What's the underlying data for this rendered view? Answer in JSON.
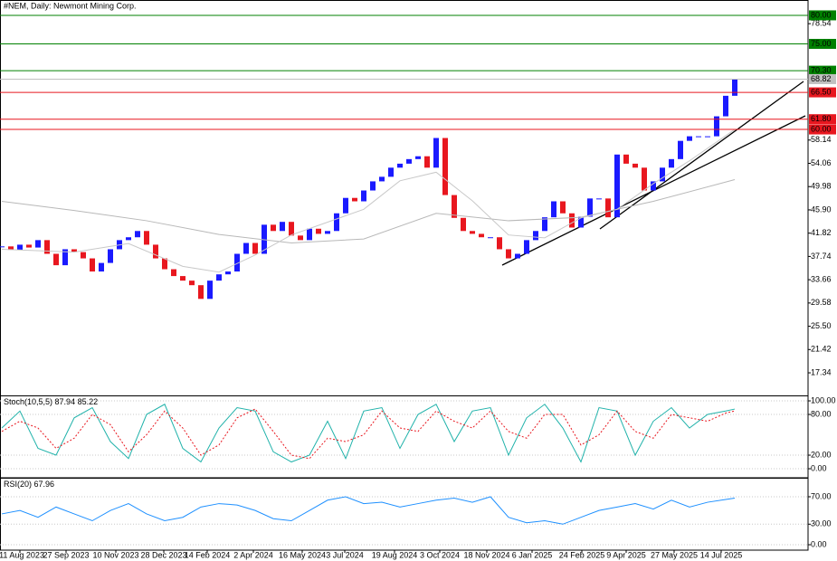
{
  "chart_data": [
    {
      "type": "candlestick",
      "title": "#NEM, Daily:  Newmont Mining Corp.",
      "x": [
        0,
        1,
        2,
        3,
        4,
        5,
        6,
        7,
        8,
        9,
        10,
        11,
        12,
        13,
        14,
        15,
        16,
        17,
        18,
        19,
        20,
        21,
        22,
        23,
        24,
        25,
        26,
        27,
        28,
        29,
        30,
        31,
        32,
        33,
        34,
        35,
        36,
        37,
        38,
        39,
        40,
        41,
        42,
        43,
        44,
        45,
        46,
        47,
        48,
        49,
        50,
        51,
        52,
        53,
        54,
        55,
        56,
        57,
        58,
        59,
        60,
        61,
        62,
        63,
        64,
        65,
        66,
        67,
        68,
        69,
        70,
        71,
        72,
        73,
        74,
        75,
        76,
        77,
        78,
        79,
        80,
        81
      ],
      "values": [
        39.5,
        38.9,
        39.8,
        39.3,
        40.6,
        38.2,
        36.2,
        39.0,
        38.5,
        37.4,
        35.1,
        36.6,
        39.0,
        40.6,
        41.1,
        42.2,
        39.8,
        37.4,
        35.5,
        34.3,
        33.5,
        32.7,
        30.3,
        33.5,
        34.6,
        35.1,
        38.2,
        40.1,
        38.2,
        43.3,
        42.2,
        43.8,
        41.4,
        40.6,
        42.6,
        41.7,
        42.2,
        45.3,
        48.0,
        47.4,
        49.3,
        50.9,
        51.7,
        53.3,
        54.0,
        54.8,
        55.3,
        53.3,
        58.5,
        48.5,
        44.5,
        42.2,
        41.7,
        41.1,
        41.1,
        39.0,
        37.4,
        38.2,
        40.6,
        42.2,
        44.6,
        47.4,
        45.3,
        42.8,
        44.7,
        47.9,
        47.9,
        44.6,
        55.6,
        54.0,
        53.3,
        49.3,
        50.9,
        53.3,
        54.8,
        58.0,
        58.8,
        58.8,
        58.8,
        62.3,
        65.9,
        68.82
      ],
      "up_color": "#1a1aff",
      "down_color": "#e8171f",
      "overlays": [
        {
          "color": "#b8b8b8",
          "x": [
            0,
            8,
            16,
            24,
            32,
            40,
            48,
            56,
            64,
            72,
            81
          ],
          "values": [
            47.4,
            45.8,
            44.0,
            41.6,
            40.1,
            40.8,
            45.3,
            44.0,
            44.6,
            47.4,
            51.2
          ]
        },
        {
          "color": "#c8c8c8",
          "x": [
            0,
            8,
            14,
            20,
            24,
            28,
            32,
            40,
            44,
            48,
            52,
            56,
            60,
            64,
            68,
            72,
            76,
            81
          ],
          "values": [
            39.0,
            38.5,
            40.0,
            36.0,
            35.0,
            38.0,
            41.5,
            46.0,
            51.0,
            52.5,
            47.5,
            41.5,
            41.0,
            44.5,
            46.0,
            50.5,
            54.5,
            60.0
          ]
        }
      ],
      "levels": [
        {
          "value": 80,
          "label": "80.00",
          "color": "#008000"
        },
        {
          "value": 75,
          "label": "75.00",
          "color": "#008000"
        },
        {
          "value": 70.3,
          "label": "70.30",
          "color": "#008000"
        },
        {
          "value": 66.5,
          "label": "66.50",
          "color": "#e8171f"
        },
        {
          "value": 61.8,
          "label": "61.80",
          "color": "#e8171f"
        },
        {
          "value": 60,
          "label": "60.00",
          "color": "#e8171f"
        }
      ],
      "current_price": 68.82,
      "xlim": [
        -0.2,
        89.1
      ],
      "ylim": [
        13.38,
        82.53
      ],
      "yticks": [
        {
          "value": 78.54,
          "label": "78.54"
        },
        {
          "value": 58.14,
          "label": "58.14"
        },
        {
          "value": 54.06,
          "label": "54.06"
        },
        {
          "value": 49.98,
          "label": "49.98"
        },
        {
          "value": 45.9,
          "label": "45.90"
        },
        {
          "value": 41.82,
          "label": "41.82"
        },
        {
          "value": 37.74,
          "label": "37.74"
        },
        {
          "value": 33.66,
          "label": "33.66"
        },
        {
          "value": 29.58,
          "label": "29.58"
        },
        {
          "value": 25.5,
          "label": "25.50"
        },
        {
          "value": 21.42,
          "label": "21.42"
        },
        {
          "value": 17.34,
          "label": "17.34"
        }
      ]
    },
    {
      "type": "line",
      "title": "Stoch(10,5,5)",
      "x": [
        0,
        2,
        4,
        6,
        8,
        10,
        12,
        14,
        16,
        18,
        20,
        22,
        24,
        26,
        28,
        30,
        32,
        34,
        36,
        38,
        40,
        42,
        44,
        46,
        48,
        50,
        52,
        54,
        56,
        58,
        60,
        62,
        64,
        66,
        68,
        70,
        72,
        74,
        76,
        78,
        80,
        81
      ],
      "series": [
        {
          "color": "#20b2aa",
          "dashed": false,
          "values": [
            60,
            85,
            30,
            20,
            75,
            90,
            40,
            15,
            80,
            95,
            30,
            10,
            60,
            90,
            85,
            25,
            10,
            20,
            70,
            15,
            85,
            90,
            30,
            80,
            95,
            40,
            85,
            90,
            20,
            75,
            95,
            60,
            10,
            90,
            85,
            20,
            70,
            90,
            60,
            80,
            85,
            87.94
          ]
        },
        {
          "color": "#e8171f",
          "dashed": true,
          "values": [
            55,
            70,
            60,
            30,
            45,
            80,
            65,
            25,
            50,
            85,
            60,
            20,
            35,
            75,
            88,
            55,
            20,
            15,
            45,
            40,
            50,
            85,
            60,
            55,
            85,
            70,
            60,
            85,
            55,
            45,
            80,
            80,
            35,
            50,
            85,
            55,
            45,
            80,
            75,
            70,
            82,
            85.22
          ]
        }
      ],
      "xlim": [
        -0.2,
        89.1
      ],
      "ylim": [
        -13.3,
        106.7
      ],
      "grid": true,
      "yticks": [
        {
          "value": 100,
          "label": "100.00"
        },
        {
          "value": 80,
          "label": "80.00"
        },
        {
          "value": 20,
          "label": "20.00"
        },
        {
          "value": 0,
          "label": "0.00"
        }
      ]
    },
    {
      "type": "line",
      "title": "RSI(20)",
      "x": [
        0,
        2,
        4,
        6,
        8,
        10,
        12,
        14,
        16,
        18,
        20,
        22,
        24,
        26,
        28,
        30,
        32,
        34,
        36,
        38,
        40,
        42,
        44,
        46,
        48,
        50,
        52,
        54,
        56,
        58,
        60,
        62,
        64,
        66,
        68,
        70,
        72,
        74,
        76,
        78,
        80,
        81
      ],
      "series": [
        {
          "color": "#1e90ff",
          "dashed": false,
          "values": [
            45,
            50,
            40,
            55,
            45,
            35,
            50,
            60,
            45,
            35,
            40,
            55,
            60,
            58,
            50,
            38,
            35,
            50,
            65,
            70,
            60,
            62,
            55,
            60,
            65,
            68,
            62,
            70,
            40,
            32,
            35,
            30,
            40,
            50,
            55,
            60,
            52,
            65,
            55,
            62,
            66,
            67.96
          ]
        }
      ],
      "xlim": [
        -0.2,
        89.1
      ],
      "ylim": [
        -7.9,
        96.4
      ],
      "grid": true,
      "yticks": [
        {
          "value": 70,
          "label": "70.00"
        },
        {
          "value": 30,
          "label": "30.00"
        },
        {
          "value": 0,
          "label": "0.00"
        }
      ],
      "xticks": [
        {
          "value": 2.0,
          "label": "11 Aug 2023"
        },
        {
          "value": 7.1,
          "label": "27 Sep 2023"
        },
        {
          "value": 12.6,
          "label": "10 Nov 2023"
        },
        {
          "value": 17.9,
          "label": "28 Dec 2023"
        },
        {
          "value": 22.7,
          "label": "14 Feb 2024"
        },
        {
          "value": 27.8,
          "label": "2 Apr 2024"
        },
        {
          "value": 33.2,
          "label": "16 May 2024"
        },
        {
          "value": 37.9,
          "label": "3 Jul 2024"
        },
        {
          "value": 43.4,
          "label": "19 Aug 2024"
        },
        {
          "value": 48.4,
          "label": "3 Oct 2024"
        },
        {
          "value": 53.6,
          "label": "18 Nov 2024"
        },
        {
          "value": 58.6,
          "label": "6 Jan 2025"
        },
        {
          "value": 64.1,
          "label": "24 Feb 2025"
        },
        {
          "value": 69.0,
          "label": "9 Apr 2025"
        },
        {
          "value": 74.3,
          "label": "27 May 2025"
        },
        {
          "value": 79.5,
          "label": "14 Jul 2025"
        }
      ]
    }
  ]
}
